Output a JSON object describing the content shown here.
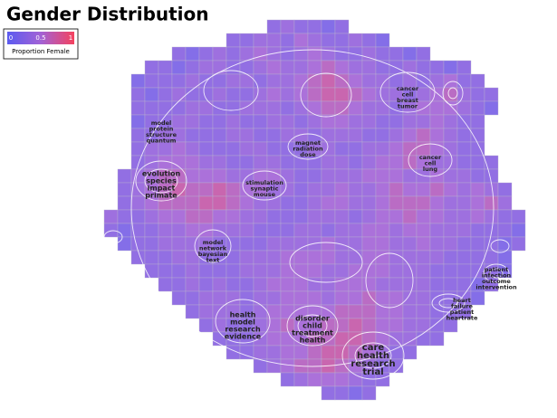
{
  "title": "Gender Distribution",
  "legend": {
    "ticks": [
      0,
      0.5,
      1
    ],
    "label": "Proportion Female"
  },
  "grid": {
    "values": [
      [
        null,
        null,
        null,
        null,
        null,
        null,
        null,
        null,
        null,
        null,
        null,
        null,
        null,
        0.3,
        0.4,
        0.3,
        0.3,
        0.2,
        0.3,
        null,
        null,
        null,
        null,
        null,
        null,
        null,
        null,
        null,
        null,
        null,
        null,
        null
      ],
      [
        null,
        null,
        null,
        null,
        null,
        null,
        null,
        null,
        null,
        null,
        0.3,
        0.3,
        0.4,
        0.4,
        0.3,
        0.5,
        0.4,
        0.3,
        0.3,
        0.4,
        0.3,
        0.2,
        null,
        null,
        null,
        null,
        null,
        null,
        null,
        null,
        null,
        null
      ],
      [
        null,
        null,
        null,
        null,
        null,
        null,
        0.3,
        0.2,
        0.3,
        0.4,
        0.3,
        0.4,
        0.5,
        0.4,
        0.3,
        0.4,
        0.5,
        0.4,
        0.3,
        0.3,
        0.4,
        0.3,
        0.3,
        0.2,
        0.3,
        null,
        null,
        null,
        null,
        null,
        null,
        null
      ],
      [
        null,
        null,
        null,
        null,
        0.3,
        0.3,
        0.2,
        0.3,
        0.4,
        0.4,
        0.3,
        0.3,
        0.4,
        0.5,
        0.4,
        0.4,
        0.5,
        0.6,
        0.5,
        0.4,
        0.4,
        0.3,
        0.3,
        0.4,
        0.3,
        0.3,
        0.2,
        0.3,
        null,
        null,
        null,
        null
      ],
      [
        null,
        null,
        null,
        0.2,
        0.3,
        0.3,
        0.3,
        0.4,
        0.3,
        0.3,
        0.4,
        0.4,
        0.3,
        0.4,
        0.4,
        0.5,
        0.6,
        0.7,
        0.6,
        0.5,
        0.4,
        0.4,
        0.3,
        0.4,
        0.3,
        0.4,
        0.5,
        0.3,
        0.3,
        null,
        null,
        null
      ],
      [
        null,
        null,
        null,
        0.3,
        0.2,
        0.3,
        0.4,
        0.3,
        0.3,
        0.4,
        0.3,
        0.3,
        0.4,
        0.5,
        0.4,
        0.5,
        0.6,
        0.7,
        0.7,
        0.6,
        0.5,
        0.4,
        0.4,
        0.3,
        0.4,
        0.5,
        0.6,
        0.4,
        0.3,
        0.3,
        null,
        null
      ],
      [
        null,
        null,
        null,
        0.3,
        0.3,
        0.3,
        0.3,
        0.4,
        0.4,
        0.3,
        0.3,
        0.4,
        0.4,
        0.4,
        0.3,
        0.4,
        0.5,
        0.6,
        0.6,
        0.5,
        0.4,
        0.4,
        0.3,
        0.4,
        0.5,
        0.5,
        0.5,
        0.4,
        0.3,
        0.2,
        null,
        null
      ],
      [
        null,
        null,
        null,
        0.2,
        0.3,
        0.3,
        0.4,
        0.4,
        0.3,
        0.3,
        0.4,
        0.3,
        0.3,
        0.4,
        0.4,
        0.3,
        0.4,
        0.5,
        0.5,
        0.4,
        0.4,
        0.3,
        0.3,
        0.4,
        0.4,
        0.5,
        0.4,
        0.3,
        0.3,
        null,
        null,
        null
      ],
      [
        null,
        null,
        null,
        0.3,
        0.3,
        0.4,
        0.4,
        0.3,
        0.3,
        0.3,
        0.4,
        0.4,
        0.3,
        0.3,
        0.4,
        0.4,
        0.3,
        0.4,
        0.4,
        0.4,
        0.3,
        0.3,
        0.4,
        0.5,
        0.6,
        0.5,
        0.4,
        0.3,
        0.3,
        null,
        null,
        null
      ],
      [
        null,
        null,
        null,
        0.3,
        0.4,
        0.4,
        0.5,
        0.4,
        0.3,
        0.3,
        0.3,
        0.4,
        0.4,
        0.3,
        0.3,
        0.3,
        0.4,
        0.4,
        0.3,
        0.3,
        0.4,
        0.4,
        0.5,
        0.6,
        0.6,
        0.5,
        0.4,
        0.3,
        0.3,
        null,
        null,
        null
      ],
      [
        null,
        null,
        null,
        0.3,
        0.4,
        0.5,
        0.5,
        0.5,
        0.4,
        0.4,
        0.3,
        0.3,
        0.4,
        0.4,
        0.3,
        0.3,
        0.3,
        0.4,
        0.4,
        0.3,
        0.4,
        0.5,
        0.5,
        0.6,
        0.5,
        0.4,
        0.4,
        0.3,
        0.3,
        0.3,
        null,
        null
      ],
      [
        null,
        null,
        0.3,
        0.4,
        0.5,
        0.6,
        0.6,
        0.5,
        0.5,
        0.5,
        0.4,
        0.4,
        0.5,
        0.5,
        0.4,
        0.3,
        0.3,
        0.4,
        0.4,
        0.4,
        0.5,
        0.5,
        0.5,
        0.4,
        0.4,
        0.5,
        0.4,
        0.4,
        0.3,
        0.3,
        null,
        null
      ],
      [
        null,
        null,
        0.3,
        0.4,
        0.5,
        0.6,
        0.7,
        0.6,
        0.6,
        0.7,
        0.6,
        0.5,
        0.5,
        0.4,
        0.4,
        0.3,
        0.4,
        0.4,
        0.5,
        0.4,
        0.4,
        0.5,
        0.6,
        0.5,
        0.5,
        0.6,
        0.5,
        0.4,
        0.5,
        0.4,
        0.3,
        null
      ],
      [
        null,
        null,
        0.3,
        0.4,
        0.5,
        0.6,
        0.6,
        0.6,
        0.7,
        0.7,
        0.6,
        0.5,
        0.4,
        0.4,
        0.3,
        0.3,
        0.4,
        0.5,
        0.5,
        0.4,
        0.4,
        0.5,
        0.6,
        0.6,
        0.6,
        0.5,
        0.4,
        0.4,
        0.5,
        0.6,
        0.4,
        null
      ],
      [
        null,
        0.4,
        0.3,
        0.3,
        0.4,
        0.5,
        0.5,
        0.6,
        0.6,
        0.5,
        0.5,
        0.4,
        0.4,
        0.3,
        0.3,
        0.3,
        0.4,
        0.4,
        0.4,
        0.3,
        0.4,
        0.5,
        0.5,
        0.6,
        0.5,
        0.5,
        0.4,
        0.4,
        0.5,
        0.4,
        0.3,
        0.3
      ],
      [
        null,
        0.3,
        0.2,
        0.3,
        0.3,
        0.4,
        0.4,
        0.5,
        0.5,
        0.4,
        0.4,
        0.4,
        0.3,
        0.3,
        0.3,
        0.4,
        0.4,
        0.3,
        0.4,
        0.4,
        0.5,
        0.5,
        0.4,
        0.5,
        0.5,
        0.4,
        0.4,
        0.4,
        0.3,
        0.3,
        0.3,
        0.2
      ],
      [
        null,
        null,
        0.2,
        0.3,
        0.3,
        0.4,
        0.4,
        0.4,
        0.4,
        0.3,
        0.3,
        0.3,
        0.3,
        0.4,
        0.4,
        0.4,
        0.4,
        0.5,
        0.4,
        0.4,
        0.5,
        0.5,
        0.4,
        0.4,
        0.5,
        0.4,
        0.4,
        0.3,
        0.3,
        0.3,
        0.2,
        0.3
      ],
      [
        null,
        null,
        null,
        0.3,
        0.3,
        0.3,
        0.4,
        0.4,
        0.3,
        0.3,
        0.3,
        0.4,
        0.4,
        0.4,
        0.5,
        0.5,
        0.5,
        0.5,
        0.4,
        0.4,
        0.5,
        0.5,
        0.4,
        0.4,
        0.4,
        0.4,
        0.3,
        0.3,
        0.3,
        0.3,
        0.2,
        null
      ],
      [
        null,
        null,
        null,
        null,
        0.3,
        0.3,
        0.3,
        0.4,
        0.3,
        0.3,
        0.3,
        0.4,
        0.4,
        0.4,
        0.5,
        0.5,
        0.5,
        0.4,
        0.4,
        0.5,
        0.5,
        0.5,
        0.4,
        0.4,
        0.4,
        0.3,
        0.3,
        0.3,
        0.3,
        0.3,
        0.2,
        null
      ],
      [
        null,
        null,
        null,
        null,
        null,
        0.3,
        0.3,
        0.4,
        0.3,
        0.4,
        0.3,
        0.3,
        0.4,
        0.5,
        0.5,
        0.5,
        0.4,
        0.4,
        0.5,
        0.5,
        0.5,
        0.4,
        0.4,
        0.4,
        0.4,
        0.3,
        0.3,
        0.3,
        0.2,
        0.3,
        null,
        null
      ],
      [
        null,
        null,
        null,
        null,
        null,
        null,
        0.3,
        0.3,
        0.4,
        0.4,
        0.4,
        0.3,
        0.4,
        0.4,
        0.5,
        0.5,
        0.5,
        0.4,
        0.5,
        0.5,
        0.6,
        0.5,
        0.5,
        0.4,
        0.4,
        0.3,
        0.3,
        0.3,
        0.2,
        null,
        null,
        null
      ],
      [
        null,
        null,
        null,
        null,
        null,
        null,
        null,
        0.3,
        0.4,
        0.4,
        0.4,
        0.3,
        0.4,
        0.5,
        0.5,
        0.5,
        0.5,
        0.5,
        0.6,
        0.6,
        0.6,
        0.5,
        0.5,
        0.4,
        0.4,
        0.3,
        0.3,
        0.3,
        null,
        null,
        null,
        null
      ],
      [
        null,
        null,
        null,
        null,
        null,
        null,
        null,
        null,
        0.3,
        0.4,
        0.3,
        0.3,
        0.4,
        0.5,
        0.6,
        0.5,
        0.5,
        0.6,
        0.6,
        0.7,
        0.6,
        0.5,
        0.5,
        0.4,
        0.4,
        0.3,
        0.3,
        null,
        null,
        null,
        null,
        null
      ],
      [
        null,
        null,
        null,
        null,
        null,
        null,
        null,
        null,
        null,
        0.3,
        0.3,
        0.3,
        0.4,
        0.5,
        0.5,
        0.5,
        0.6,
        0.6,
        0.7,
        0.7,
        0.6,
        0.5,
        0.4,
        0.4,
        0.3,
        0.3,
        null,
        null,
        null,
        null,
        null,
        null
      ],
      [
        null,
        null,
        null,
        null,
        null,
        null,
        null,
        null,
        null,
        null,
        0.3,
        0.3,
        0.4,
        0.4,
        0.5,
        0.5,
        0.6,
        0.7,
        0.7,
        0.6,
        0.5,
        0.4,
        0.3,
        0.3,
        null,
        null,
        null,
        null,
        null,
        null,
        null,
        null
      ],
      [
        null,
        null,
        null,
        null,
        null,
        null,
        null,
        null,
        null,
        null,
        null,
        null,
        0.3,
        0.4,
        0.5,
        0.6,
        0.6,
        0.7,
        0.6,
        0.5,
        0.4,
        0.3,
        0.3,
        null,
        null,
        null,
        null,
        null,
        null,
        null,
        null,
        null
      ],
      [
        null,
        null,
        null,
        null,
        null,
        null,
        null,
        null,
        null,
        null,
        null,
        null,
        null,
        null,
        0.3,
        0.4,
        0.5,
        0.5,
        0.5,
        0.4,
        0.3,
        0.3,
        null,
        null,
        null,
        null,
        null,
        null,
        null,
        null,
        null,
        null
      ],
      [
        null,
        null,
        null,
        null,
        null,
        null,
        null,
        null,
        null,
        null,
        null,
        null,
        null,
        null,
        null,
        null,
        null,
        0.3,
        0.3,
        0.2,
        0.3,
        null,
        null,
        null,
        null,
        null,
        null,
        null,
        null,
        null,
        null,
        null
      ]
    ]
  },
  "topics": [
    {
      "lines": [
        "evolution",
        "species",
        "impact",
        "primate"
      ]
    },
    {
      "lines": [
        "health",
        "model",
        "research",
        "evidence"
      ]
    },
    {
      "lines": [
        "disorder",
        "child",
        "treatment",
        "health"
      ]
    },
    {
      "lines": [
        "care",
        "health",
        "research",
        "trial"
      ]
    },
    {
      "lines": [
        "heart",
        "failure",
        "patient",
        "heartrate"
      ]
    },
    {
      "lines": [
        "patient",
        "infection",
        "outcome",
        "intervention"
      ]
    },
    {
      "lines": [
        "model",
        "network",
        "bayesian",
        "text"
      ]
    },
    {
      "lines": [
        "cancer",
        "cell",
        "breast",
        "tumor"
      ]
    },
    {
      "lines": [
        "model",
        "protein",
        "structure",
        "quantum"
      ]
    },
    {
      "lines": [
        "stimulation",
        "synaptic",
        "mouse"
      ]
    },
    {
      "lines": [
        "cancer",
        "cell",
        "lung"
      ]
    },
    {
      "lines": [
        "magnet",
        "radiation",
        "dose"
      ]
    }
  ]
}
